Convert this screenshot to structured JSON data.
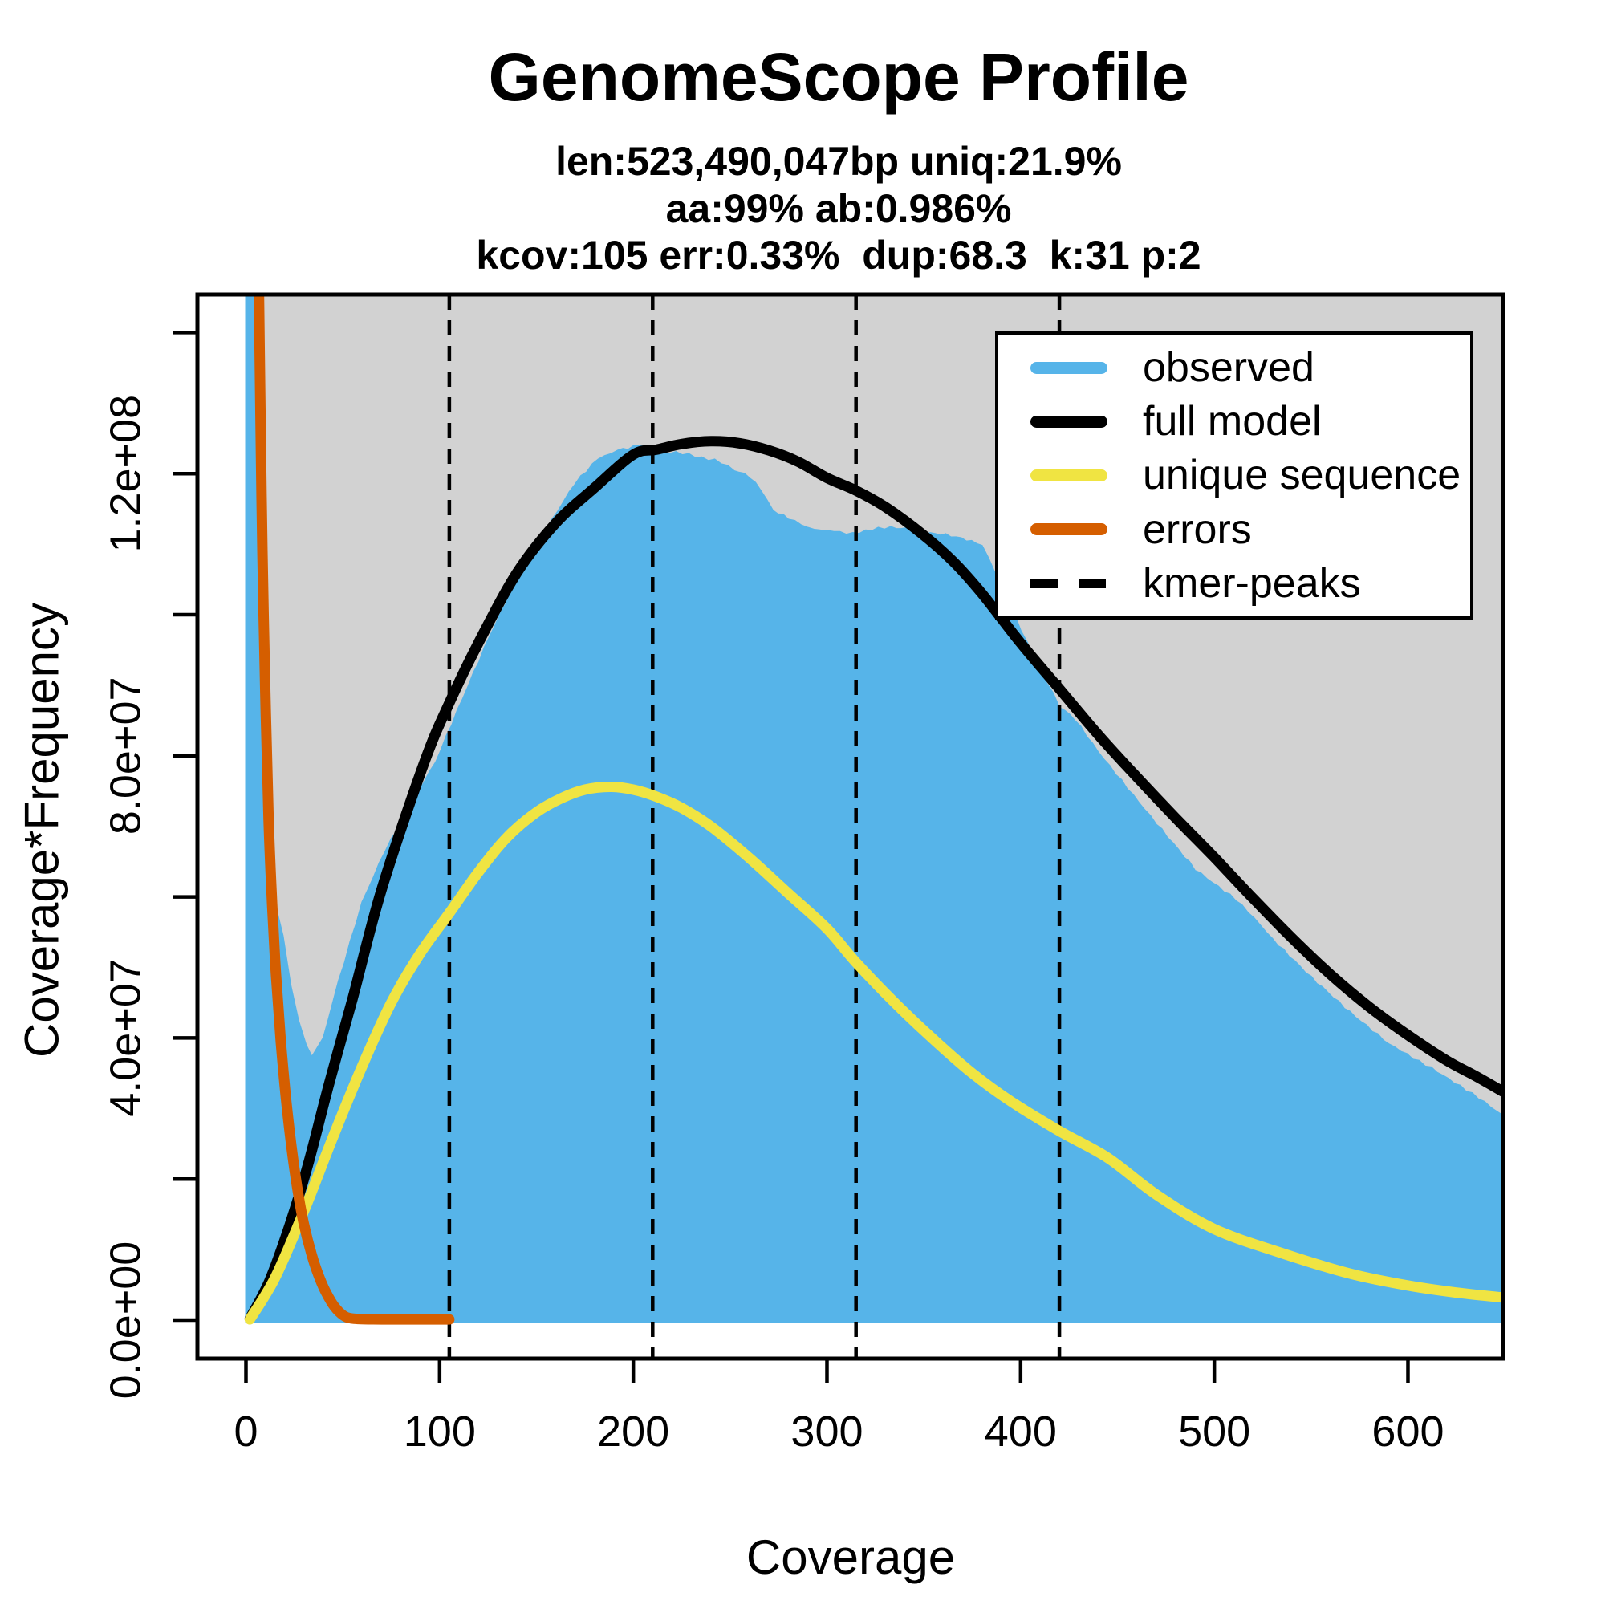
{
  "title": "GenomeScope Profile",
  "subtitle_lines": [
    "len:523,490,047bp uniq:21.9%",
    "aa:99% ab:0.986%",
    "kcov:105 err:0.33%  dup:68.3  k:31 p:2"
  ],
  "colors": {
    "observed": "#56B4E9",
    "full_model": "#000000",
    "unique_sequence": "#F0E442",
    "errors": "#D55E00",
    "panel_background": "#D2D2D2",
    "frame": "#000000",
    "page_background": "#FFFFFF"
  },
  "legend": {
    "entries": [
      {
        "label": "observed",
        "color": "#56B4E9",
        "style": "solid"
      },
      {
        "label": "full model",
        "color": "#000000",
        "style": "solid"
      },
      {
        "label": "unique sequence",
        "color": "#F0E442",
        "style": "solid"
      },
      {
        "label": "errors",
        "color": "#D55E00",
        "style": "solid"
      },
      {
        "label": "kmer-peaks",
        "color": "#000000",
        "style": "dashed"
      }
    ]
  },
  "chart_data": {
    "type": "area",
    "title": "GenomeScope Profile",
    "xlabel": "Coverage",
    "ylabel": "Coverage*Frequency",
    "xlim": [
      -25,
      649
    ],
    "ylim": [
      -5500000,
      145400000
    ],
    "grid": false,
    "legend_position": "top-right",
    "x_ticks": [
      {
        "v": 0,
        "label": "0"
      },
      {
        "v": 100,
        "label": "100"
      },
      {
        "v": 200,
        "label": "200"
      },
      {
        "v": 300,
        "label": "300"
      },
      {
        "v": 400,
        "label": "400"
      },
      {
        "v": 500,
        "label": "500"
      },
      {
        "v": 600,
        "label": "600"
      }
    ],
    "y_ticks": [
      {
        "v": 0,
        "label": "0.0e+00"
      },
      {
        "v": 20000000,
        "label": ""
      },
      {
        "v": 40000000,
        "label": "4.0e+07"
      },
      {
        "v": 60000000,
        "label": ""
      },
      {
        "v": 80000000,
        "label": "8.0e+07"
      },
      {
        "v": 100000000,
        "label": ""
      },
      {
        "v": 120000000,
        "label": "1.2e+08"
      },
      {
        "v": 140000000,
        "label": ""
      }
    ],
    "kmer_peaks": [
      105,
      210,
      315,
      420
    ],
    "model_stats": {
      "len_bp": "523,490,047",
      "uniq_pct": 21.9,
      "aa_pct": 99,
      "ab_pct": 0.986,
      "kcov": 105,
      "err_pct": 0.33,
      "dup": 68.3,
      "k": 31,
      "p": 2
    },
    "series": {
      "observed": [
        [
          0,
          150000000
        ],
        [
          4.8,
          150000000
        ],
        [
          7,
          105000000
        ],
        [
          9.5,
          79000000
        ],
        [
          12,
          67000000
        ],
        [
          15,
          59000000
        ],
        [
          19,
          54500000
        ],
        [
          23,
          47500000
        ],
        [
          27,
          42500000
        ],
        [
          31,
          39000000
        ],
        [
          34,
          37300000
        ],
        [
          40,
          40000000
        ],
        [
          48,
          48000000
        ],
        [
          60,
          59000000
        ],
        [
          72,
          66500000
        ],
        [
          85,
          73000000
        ],
        [
          98,
          79000000
        ],
        [
          112,
          88000000
        ],
        [
          126,
          97000000
        ],
        [
          140,
          105000000
        ],
        [
          155,
          112000000
        ],
        [
          170,
          118500000
        ],
        [
          182,
          122000000
        ],
        [
          192,
          123400000
        ],
        [
          200,
          123800000
        ],
        [
          205,
          124000000
        ],
        [
          212,
          123200000
        ],
        [
          222,
          122800000
        ],
        [
          232,
          122500000
        ],
        [
          242,
          121800000
        ],
        [
          252,
          120500000
        ],
        [
          260,
          119400000
        ],
        [
          266,
          117500000
        ],
        [
          272,
          114700000
        ],
        [
          280,
          113500000
        ],
        [
          290,
          112400000
        ],
        [
          300,
          111800000
        ],
        [
          310,
          111500000
        ],
        [
          320,
          111800000
        ],
        [
          333,
          112300000
        ],
        [
          341,
          112000000
        ],
        [
          348,
          111700000
        ],
        [
          356,
          111400000
        ],
        [
          364,
          111000000
        ],
        [
          372,
          110600000
        ],
        [
          380,
          110000000
        ],
        [
          390,
          104000000
        ],
        [
          400,
          98000000
        ],
        [
          410,
          92000000
        ],
        [
          420,
          87000000
        ],
        [
          428,
          85000000
        ],
        [
          440,
          80500000
        ],
        [
          455,
          75500000
        ],
        [
          470,
          70500000
        ],
        [
          490,
          64000000
        ],
        [
          511,
          59600000
        ],
        [
          530,
          54000000
        ],
        [
          550,
          48500000
        ],
        [
          570,
          43500000
        ],
        [
          590,
          39000000
        ],
        [
          612,
          35800000
        ],
        [
          630,
          32500000
        ],
        [
          649,
          29000000
        ]
      ],
      "full_model": [
        [
          2,
          200000
        ],
        [
          12,
          5500000
        ],
        [
          22,
          13000000
        ],
        [
          32,
          22000000
        ],
        [
          43,
          33600000
        ],
        [
          55,
          45500000
        ],
        [
          70,
          61000000
        ],
        [
          92,
          79000000
        ],
        [
          105,
          87500000
        ],
        [
          120,
          96000000
        ],
        [
          140,
          106000000
        ],
        [
          160,
          113000000
        ],
        [
          180,
          118000000
        ],
        [
          200,
          122700000
        ],
        [
          212,
          123400000
        ],
        [
          225,
          124200000
        ],
        [
          240,
          124600000
        ],
        [
          255,
          124300000
        ],
        [
          270,
          123300000
        ],
        [
          285,
          121700000
        ],
        [
          300,
          119400000
        ],
        [
          315,
          117600000
        ],
        [
          330,
          115300000
        ],
        [
          348,
          111700000
        ],
        [
          365,
          107600000
        ],
        [
          380,
          103000000
        ],
        [
          400,
          96000000
        ],
        [
          420,
          89500000
        ],
        [
          440,
          83000000
        ],
        [
          460,
          77000000
        ],
        [
          480,
          71200000
        ],
        [
          500,
          65600000
        ],
        [
          520,
          59800000
        ],
        [
          540,
          54200000
        ],
        [
          560,
          49000000
        ],
        [
          580,
          44400000
        ],
        [
          600,
          40400000
        ],
        [
          620,
          36800000
        ],
        [
          635,
          34600000
        ],
        [
          649,
          32400000
        ]
      ],
      "unique_sequence": [
        [
          2,
          100000
        ],
        [
          15,
          6000000
        ],
        [
          30,
          15500000
        ],
        [
          45,
          26000000
        ],
        [
          60,
          36000000
        ],
        [
          75,
          45000000
        ],
        [
          90,
          52000000
        ],
        [
          105,
          57700000
        ],
        [
          120,
          63500000
        ],
        [
          135,
          68500000
        ],
        [
          150,
          72000000
        ],
        [
          163,
          74000000
        ],
        [
          175,
          75200000
        ],
        [
          188,
          75600000
        ],
        [
          200,
          75200000
        ],
        [
          212,
          74200000
        ],
        [
          225,
          72600000
        ],
        [
          240,
          70000000
        ],
        [
          260,
          65500000
        ],
        [
          280,
          60500000
        ],
        [
          300,
          55500000
        ],
        [
          315,
          50700000
        ],
        [
          335,
          45000000
        ],
        [
          355,
          39800000
        ],
        [
          375,
          35000000
        ],
        [
          395,
          31000000
        ],
        [
          420,
          26800000
        ],
        [
          445,
          23000000
        ],
        [
          470,
          17800000
        ],
        [
          500,
          12900000
        ],
        [
          536,
          9400000
        ],
        [
          570,
          6600000
        ],
        [
          600,
          4900000
        ],
        [
          625,
          3900000
        ],
        [
          649,
          3200000
        ]
      ],
      "errors": [
        [
          6.5,
          150000000
        ],
        [
          7.5,
          128000000
        ],
        [
          8.5,
          109000000
        ],
        [
          10,
          89000000
        ],
        [
          11.7,
          71000000
        ],
        [
          13.5,
          59000000
        ],
        [
          15.5,
          49000000
        ],
        [
          18,
          39500000
        ],
        [
          21,
          30500000
        ],
        [
          25,
          21500000
        ],
        [
          29,
          14800000
        ],
        [
          34,
          9200000
        ],
        [
          39,
          5300000
        ],
        [
          44,
          2600000
        ],
        [
          48,
          1200000
        ],
        [
          52,
          400000
        ],
        [
          58,
          150000
        ],
        [
          70,
          100000
        ],
        [
          105,
          100000
        ]
      ]
    }
  }
}
